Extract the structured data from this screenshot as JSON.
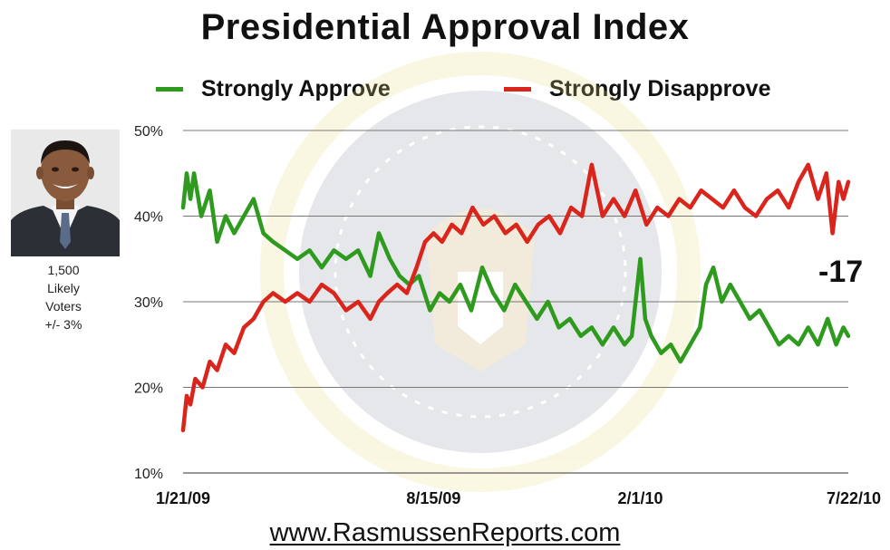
{
  "title": "Presidential Approval Index",
  "sample": {
    "size": "1,500",
    "likely": "Likely",
    "voters": "Voters",
    "margin": "+/- 3%"
  },
  "net_label": "-17",
  "source": "www.RasmussenReports.com",
  "colors": {
    "approve": "#2e9b1e",
    "disapprove": "#d9251c",
    "grid": "#777777"
  },
  "chart_data": {
    "type": "line",
    "title": "Presidential Approval Index",
    "ylim": [
      10,
      50
    ],
    "yticks": [
      10,
      20,
      30,
      40,
      50
    ],
    "ytick_labels": [
      "10%",
      "20%",
      "30%",
      "40%",
      "50%"
    ],
    "x_ticks": [
      {
        "label": "1/21/09",
        "date": "2009-01-21"
      },
      {
        "label": "8/15/09",
        "date": "2009-08-15"
      },
      {
        "label": "2/1/10",
        "date": "2010-02-01"
      },
      {
        "label": "7/22/10",
        "date": "2010-07-22"
      }
    ],
    "grid": true,
    "legend": "top",
    "series": [
      {
        "name": "Strongly Approve",
        "color": "#2e9b1e",
        "points": [
          [
            "2009-01-21",
            41
          ],
          [
            "2009-01-24",
            45
          ],
          [
            "2009-01-27",
            42
          ],
          [
            "2009-01-30",
            45
          ],
          [
            "2009-02-05",
            40
          ],
          [
            "2009-02-12",
            43
          ],
          [
            "2009-02-18",
            37
          ],
          [
            "2009-02-25",
            40
          ],
          [
            "2009-03-04",
            38
          ],
          [
            "2009-03-12",
            40
          ],
          [
            "2009-03-20",
            42
          ],
          [
            "2009-03-28",
            38
          ],
          [
            "2009-04-05",
            37
          ],
          [
            "2009-04-15",
            36
          ],
          [
            "2009-04-25",
            35
          ],
          [
            "2009-05-05",
            36
          ],
          [
            "2009-05-15",
            34
          ],
          [
            "2009-05-25",
            36
          ],
          [
            "2009-06-04",
            35
          ],
          [
            "2009-06-14",
            36
          ],
          [
            "2009-06-24",
            33
          ],
          [
            "2009-07-01",
            38
          ],
          [
            "2009-07-10",
            35
          ],
          [
            "2009-07-18",
            33
          ],
          [
            "2009-07-26",
            32
          ],
          [
            "2009-08-03",
            33
          ],
          [
            "2009-08-12",
            29
          ],
          [
            "2009-08-20",
            31
          ],
          [
            "2009-08-28",
            30
          ],
          [
            "2009-09-06",
            32
          ],
          [
            "2009-09-15",
            29
          ],
          [
            "2009-09-24",
            34
          ],
          [
            "2009-10-03",
            31
          ],
          [
            "2009-10-12",
            29
          ],
          [
            "2009-10-21",
            32
          ],
          [
            "2009-10-30",
            30
          ],
          [
            "2009-11-08",
            28
          ],
          [
            "2009-11-17",
            30
          ],
          [
            "2009-11-26",
            27
          ],
          [
            "2009-12-05",
            28
          ],
          [
            "2009-12-14",
            26
          ],
          [
            "2009-12-23",
            27
          ],
          [
            "2010-01-01",
            25
          ],
          [
            "2010-01-10",
            27
          ],
          [
            "2010-01-19",
            25
          ],
          [
            "2010-01-25",
            26
          ],
          [
            "2010-02-01",
            35
          ],
          [
            "2010-02-05",
            28
          ],
          [
            "2010-02-10",
            26
          ],
          [
            "2010-02-18",
            24
          ],
          [
            "2010-02-26",
            25
          ],
          [
            "2010-03-06",
            23
          ],
          [
            "2010-03-14",
            25
          ],
          [
            "2010-03-22",
            27
          ],
          [
            "2010-03-27",
            32
          ],
          [
            "2010-04-02",
            34
          ],
          [
            "2010-04-09",
            30
          ],
          [
            "2010-04-16",
            32
          ],
          [
            "2010-04-24",
            30
          ],
          [
            "2010-05-02",
            28
          ],
          [
            "2010-05-10",
            29
          ],
          [
            "2010-05-18",
            27
          ],
          [
            "2010-05-26",
            25
          ],
          [
            "2010-06-03",
            26
          ],
          [
            "2010-06-11",
            25
          ],
          [
            "2010-06-19",
            27
          ],
          [
            "2010-06-27",
            25
          ],
          [
            "2010-07-05",
            28
          ],
          [
            "2010-07-12",
            25
          ],
          [
            "2010-07-18",
            27
          ],
          [
            "2010-07-22",
            26
          ]
        ]
      },
      {
        "name": "Strongly Disapprove",
        "color": "#d9251c",
        "points": [
          [
            "2009-01-21",
            15
          ],
          [
            "2009-01-24",
            19
          ],
          [
            "2009-01-27",
            18
          ],
          [
            "2009-01-31",
            21
          ],
          [
            "2009-02-06",
            20
          ],
          [
            "2009-02-12",
            23
          ],
          [
            "2009-02-18",
            22
          ],
          [
            "2009-02-25",
            25
          ],
          [
            "2009-03-04",
            24
          ],
          [
            "2009-03-12",
            27
          ],
          [
            "2009-03-20",
            28
          ],
          [
            "2009-03-28",
            30
          ],
          [
            "2009-04-05",
            31
          ],
          [
            "2009-04-15",
            30
          ],
          [
            "2009-04-25",
            31
          ],
          [
            "2009-05-05",
            30
          ],
          [
            "2009-05-15",
            32
          ],
          [
            "2009-05-25",
            31
          ],
          [
            "2009-06-04",
            29
          ],
          [
            "2009-06-14",
            30
          ],
          [
            "2009-06-24",
            28
          ],
          [
            "2009-07-01",
            30
          ],
          [
            "2009-07-08",
            31
          ],
          [
            "2009-07-16",
            32
          ],
          [
            "2009-07-24",
            31
          ],
          [
            "2009-08-01",
            34
          ],
          [
            "2009-08-08",
            37
          ],
          [
            "2009-08-15",
            38
          ],
          [
            "2009-08-22",
            37
          ],
          [
            "2009-08-30",
            39
          ],
          [
            "2009-09-07",
            38
          ],
          [
            "2009-09-16",
            41
          ],
          [
            "2009-09-25",
            39
          ],
          [
            "2009-10-04",
            40
          ],
          [
            "2009-10-13",
            38
          ],
          [
            "2009-10-22",
            39
          ],
          [
            "2009-10-31",
            37
          ],
          [
            "2009-11-09",
            39
          ],
          [
            "2009-11-18",
            40
          ],
          [
            "2009-11-27",
            38
          ],
          [
            "2009-12-06",
            41
          ],
          [
            "2009-12-15",
            40
          ],
          [
            "2009-12-23",
            46
          ],
          [
            "2010-01-01",
            40
          ],
          [
            "2010-01-10",
            42
          ],
          [
            "2010-01-19",
            40
          ],
          [
            "2010-01-28",
            43
          ],
          [
            "2010-02-06",
            39
          ],
          [
            "2010-02-15",
            41
          ],
          [
            "2010-02-24",
            40
          ],
          [
            "2010-03-05",
            42
          ],
          [
            "2010-03-14",
            41
          ],
          [
            "2010-03-23",
            43
          ],
          [
            "2010-04-01",
            42
          ],
          [
            "2010-04-10",
            41
          ],
          [
            "2010-04-19",
            43
          ],
          [
            "2010-04-28",
            41
          ],
          [
            "2010-05-07",
            40
          ],
          [
            "2010-05-16",
            42
          ],
          [
            "2010-05-25",
            43
          ],
          [
            "2010-06-03",
            41
          ],
          [
            "2010-06-11",
            44
          ],
          [
            "2010-06-19",
            46
          ],
          [
            "2010-06-27",
            42
          ],
          [
            "2010-07-04",
            45
          ],
          [
            "2010-07-09",
            38
          ],
          [
            "2010-07-14",
            44
          ],
          [
            "2010-07-18",
            42
          ],
          [
            "2010-07-22",
            44
          ]
        ]
      }
    ]
  }
}
